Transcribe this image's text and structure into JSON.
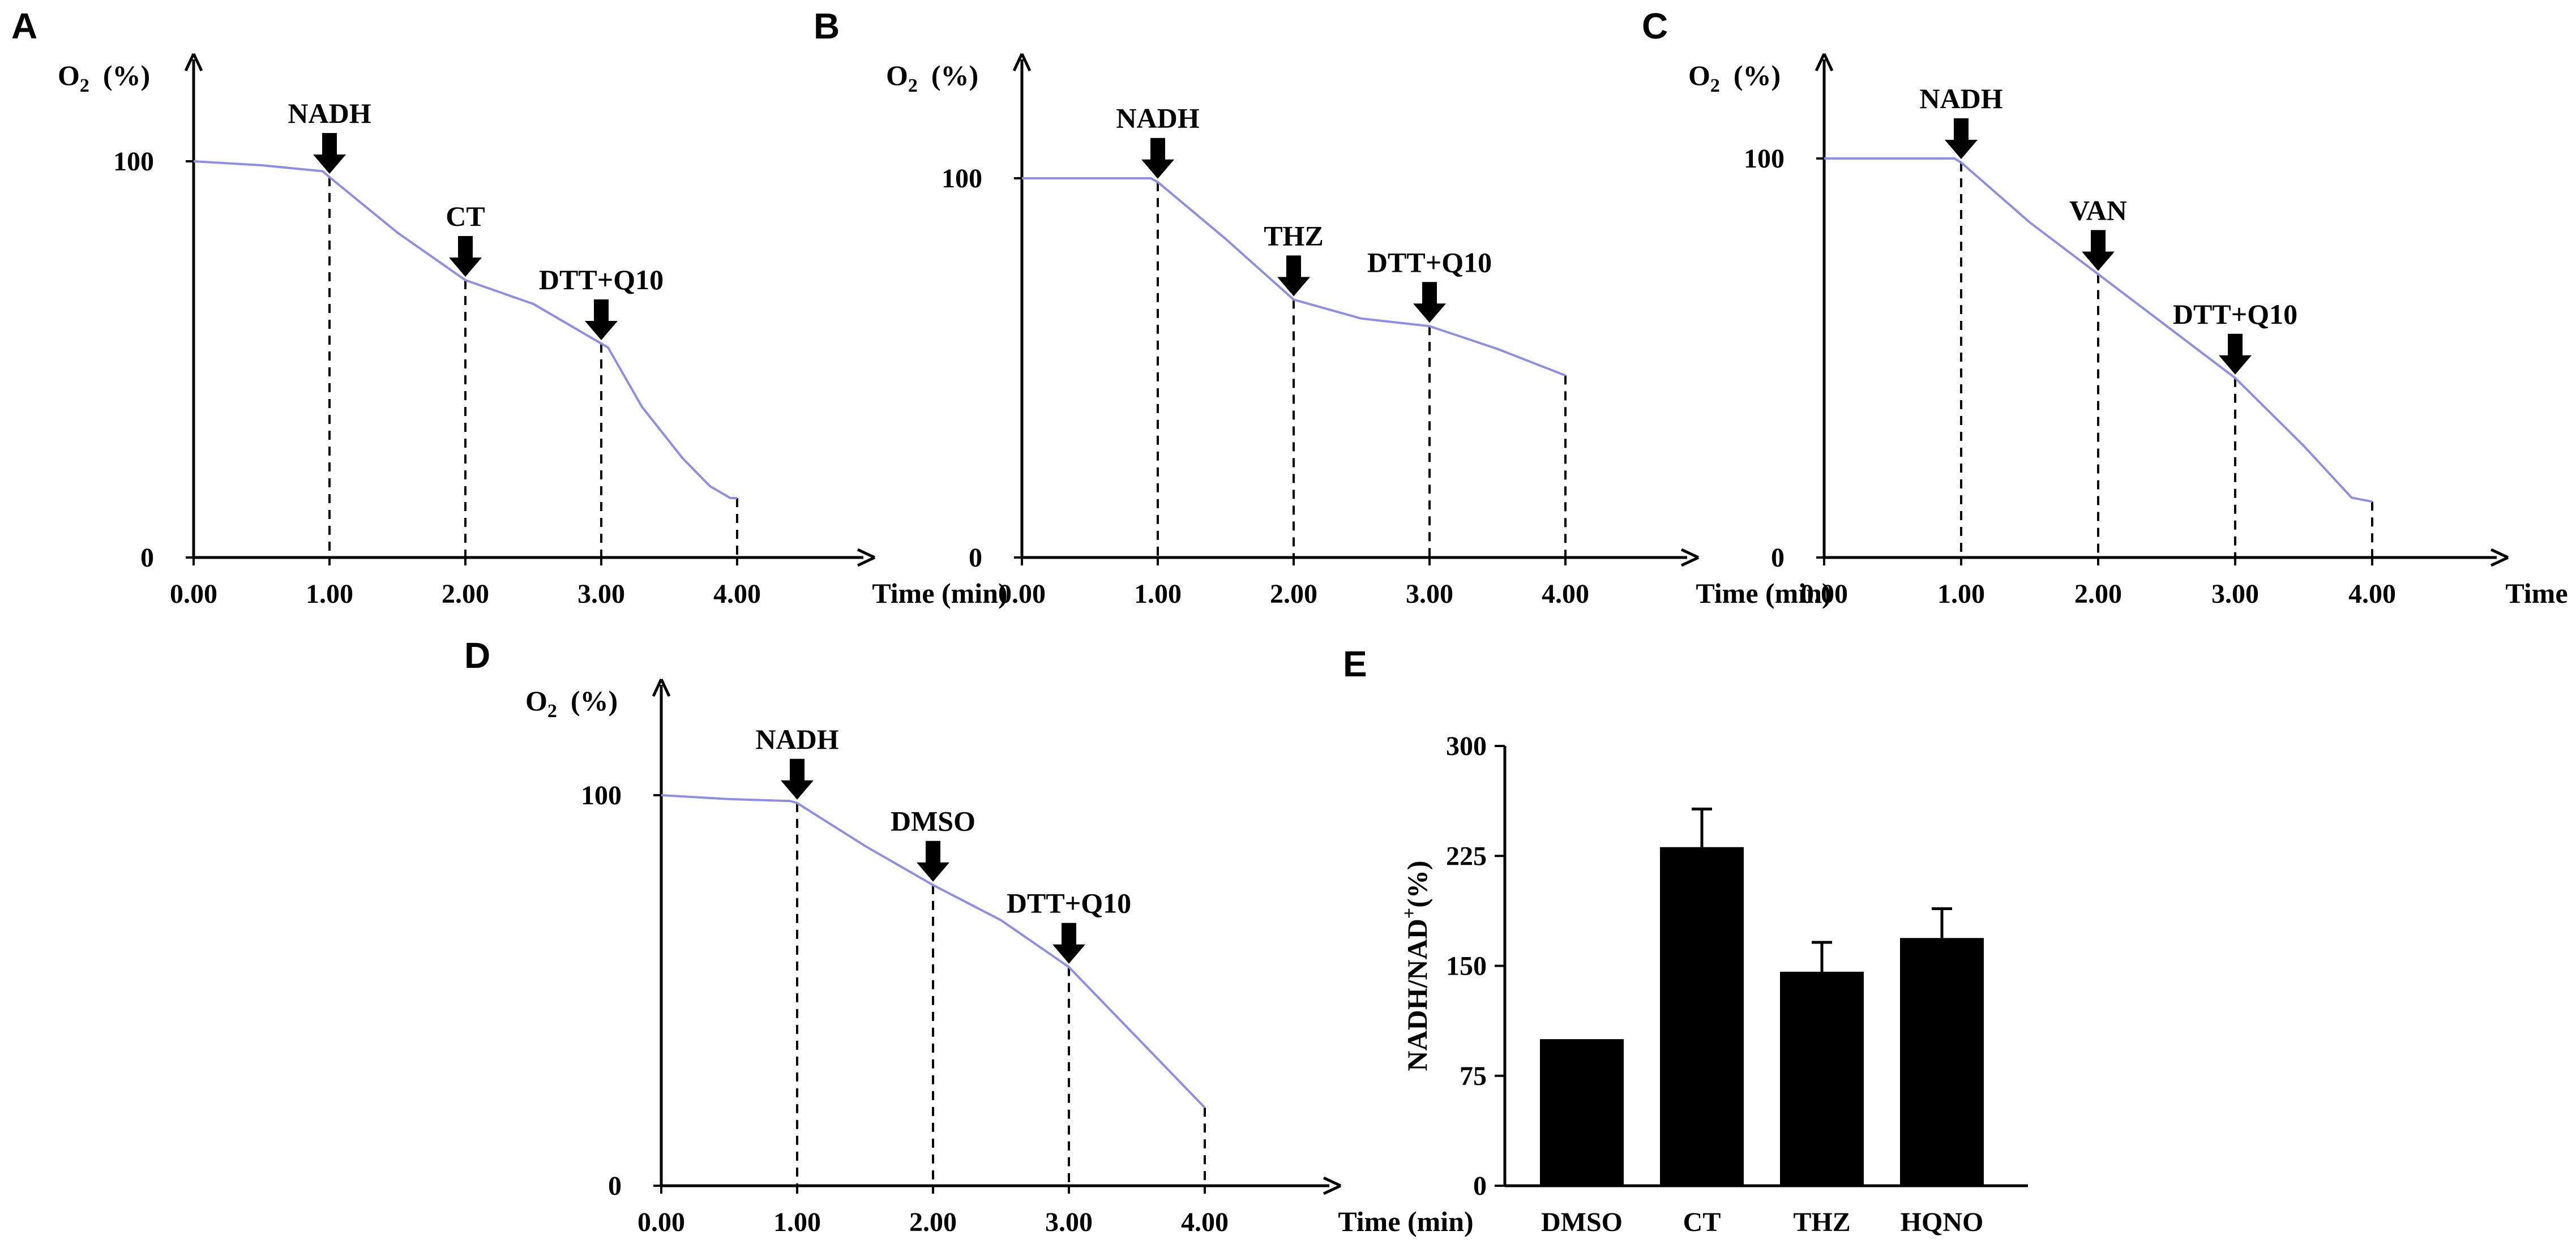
{
  "chart_data": [
    {
      "panel": "A",
      "type": "line",
      "ylabel_main": "O",
      "ylabel_sub": "2",
      "ylabel_unit": "(%)",
      "xlabel": "Time (min)",
      "x_ticks": [
        "0.00",
        "1.00",
        "2.00",
        "3.00",
        "4.00"
      ],
      "y_ticks": [
        "0",
        "100"
      ],
      "xlim": [
        0,
        4.9
      ],
      "ylim": [
        0,
        128
      ],
      "line_color": "#8f8fdd",
      "series": [
        {
          "x": [
            0,
            0.5,
            0.95,
            1.0,
            1.5,
            2.0,
            2.5,
            2.95,
            3.05,
            3.3,
            3.6,
            3.8,
            3.95,
            4.0
          ],
          "y": [
            100,
            99,
            97.5,
            96,
            82,
            70,
            64,
            55,
            53,
            38,
            25,
            18,
            15,
            15
          ]
        }
      ],
      "events": [
        {
          "label": "NADH",
          "x": 1.0,
          "y": 96
        },
        {
          "label": "CT",
          "x": 2.0,
          "y": 70
        },
        {
          "label": "DTT+Q10",
          "x": 3.0,
          "y": 54
        },
        {
          "label": "",
          "x": 4.0,
          "y": 15
        }
      ]
    },
    {
      "panel": "B",
      "type": "line",
      "ylabel_main": "O",
      "ylabel_sub": "2",
      "ylabel_unit": "(%)",
      "xlabel": "Time (min)",
      "x_ticks": [
        "0.00",
        "1.00",
        "2.00",
        "3.00",
        "4.00"
      ],
      "y_ticks": [
        "0",
        "100"
      ],
      "xlim": [
        0,
        4.9
      ],
      "ylim": [
        0,
        128
      ],
      "line_color": "#8f8fdd",
      "series": [
        {
          "x": [
            0,
            0.5,
            0.95,
            1.0,
            1.5,
            2.0,
            2.5,
            3.0,
            3.5,
            4.0
          ],
          "y": [
            100,
            100,
            100,
            99,
            84,
            68,
            63,
            61,
            55,
            48
          ]
        }
      ],
      "events": [
        {
          "label": "NADH",
          "x": 1.0,
          "y": 99
        },
        {
          "label": "THZ",
          "x": 2.0,
          "y": 68
        },
        {
          "label": "DTT+Q10",
          "x": 3.0,
          "y": 61
        },
        {
          "label": "",
          "x": 4.0,
          "y": 48
        }
      ]
    },
    {
      "panel": "C",
      "type": "line",
      "ylabel_main": "O",
      "ylabel_sub": "2",
      "ylabel_unit": "(%)",
      "xlabel": "Time (min)",
      "x_ticks": [
        "0.00",
        "1.00",
        "2.00",
        "3.00",
        "4.00"
      ],
      "y_ticks": [
        "0",
        "100"
      ],
      "xlim": [
        0,
        4.9
      ],
      "ylim": [
        0,
        128
      ],
      "line_color": "#8f8fdd",
      "series": [
        {
          "x": [
            0,
            0.5,
            0.95,
            1.0,
            1.5,
            2.0,
            2.5,
            3.0,
            3.5,
            3.85,
            4.0
          ],
          "y": [
            100,
            100,
            100,
            99,
            84,
            71,
            58,
            45,
            28,
            15,
            14
          ]
        }
      ],
      "events": [
        {
          "label": "NADH",
          "x": 1.0,
          "y": 99
        },
        {
          "label": "VAN",
          "x": 2.0,
          "y": 71
        },
        {
          "label": "DTT+Q10",
          "x": 3.0,
          "y": 45
        },
        {
          "label": "",
          "x": 4.0,
          "y": 14
        }
      ]
    },
    {
      "panel": "D",
      "type": "line",
      "ylabel_main": "O",
      "ylabel_sub": "2",
      "ylabel_unit": "(%)",
      "xlabel": "Time (min)",
      "x_ticks": [
        "0.00",
        "1.00",
        "2.00",
        "3.00",
        "4.00"
      ],
      "y_ticks": [
        "0",
        "100"
      ],
      "xlim": [
        0,
        4.9
      ],
      "ylim": [
        0,
        128
      ],
      "line_color": "#8f8fdd",
      "series": [
        {
          "x": [
            0,
            0.5,
            0.95,
            1.0,
            1.5,
            2.0,
            2.5,
            3.0,
            3.5,
            4.0
          ],
          "y": [
            100,
            99,
            98.5,
            98,
            87,
            77,
            68,
            56,
            38,
            20
          ]
        }
      ],
      "events": [
        {
          "label": "NADH",
          "x": 1.0,
          "y": 98
        },
        {
          "label": "DMSO",
          "x": 2.0,
          "y": 77
        },
        {
          "label": "DTT+Q10",
          "x": 3.0,
          "y": 56
        },
        {
          "label": "",
          "x": 4.0,
          "y": 20
        }
      ]
    },
    {
      "panel": "E",
      "type": "bar",
      "ylabel_main": "NADH/NAD",
      "ylabel_sup": "+",
      "ylabel_unit": "(%)",
      "categories": [
        "DMSO",
        "CT",
        "THZ",
        "HQNO"
      ],
      "values": [
        100,
        231,
        146,
        169
      ],
      "errors": [
        0,
        26,
        20,
        20
      ],
      "y_ticks": [
        "0",
        "75",
        "150",
        "225",
        "300"
      ],
      "ylim": [
        0,
        300
      ],
      "bar_color": "#000000"
    }
  ]
}
